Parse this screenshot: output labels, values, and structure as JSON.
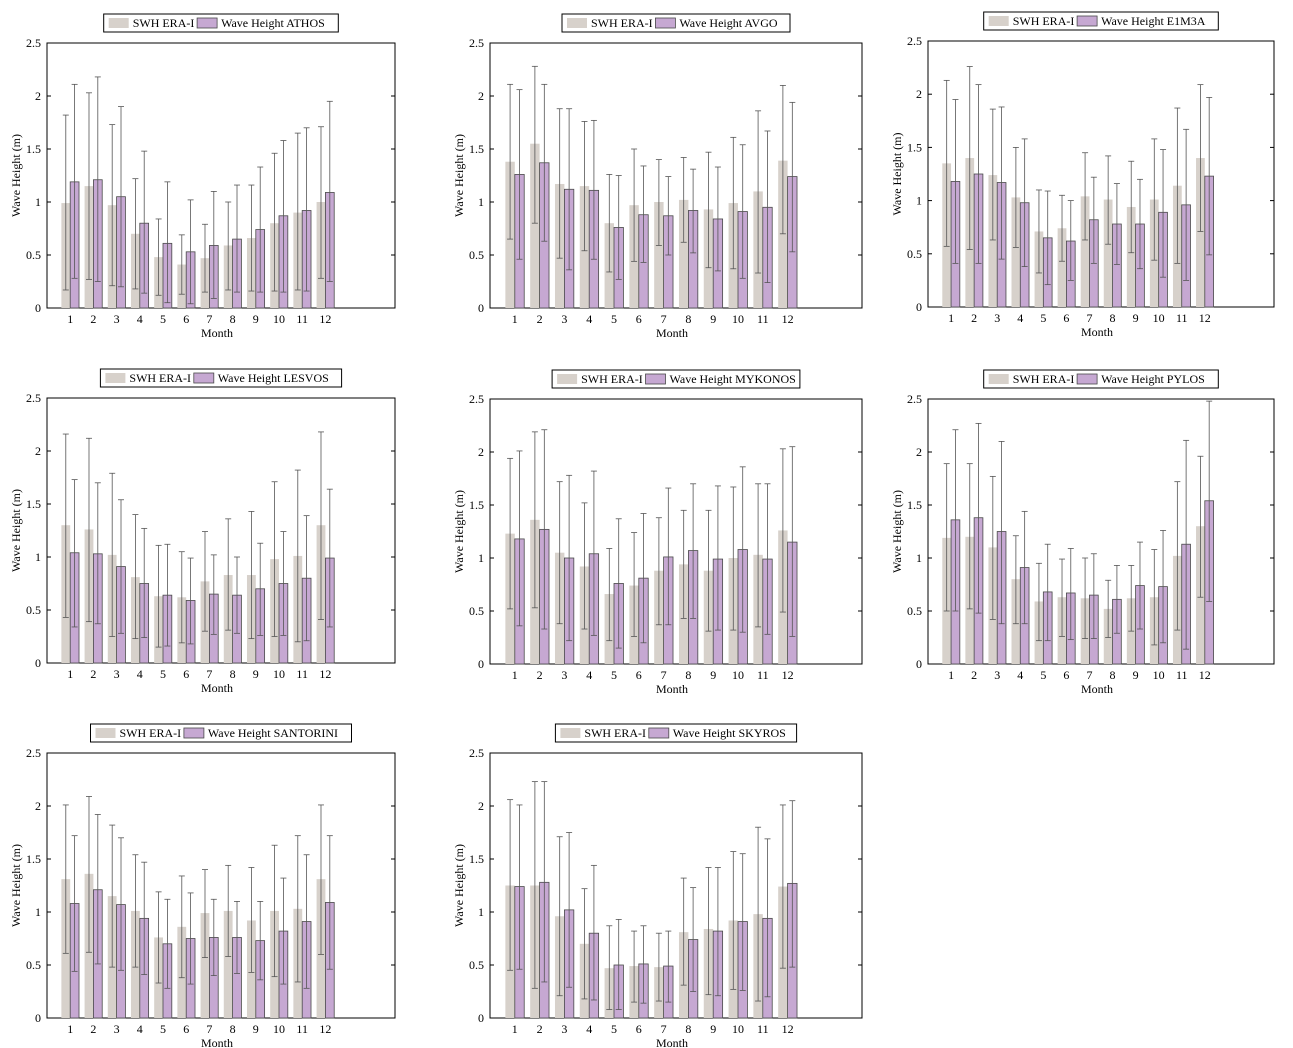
{
  "colors": {
    "era": "#d7d1cb",
    "buoy": "#c6a8d2",
    "bar_edge": "#4a4a4a",
    "axis": "#000000"
  },
  "chart_data": [
    {
      "type": "bar",
      "legend": [
        "SWH ERA-I",
        "Wave Height ATHOS"
      ],
      "xlabel": "Month",
      "ylabel": "Wave Height (m)",
      "categories": [
        "1",
        "2",
        "3",
        "4",
        "5",
        "6",
        "7",
        "8",
        "9",
        "10",
        "11",
        "12"
      ],
      "yticks": [
        "0",
        "0.5",
        "1",
        "1.5",
        "2",
        "2.5"
      ],
      "ylim": [
        0,
        2.5
      ],
      "xlim": [
        0,
        15
      ],
      "series": [
        {
          "name": "SWH ERA-I",
          "values": [
            0.99,
            1.15,
            0.97,
            0.7,
            0.48,
            0.41,
            0.47,
            0.59,
            0.66,
            0.8,
            0.9,
            1.0
          ],
          "err_low": [
            0.17,
            0.27,
            0.21,
            0.18,
            0.12,
            0.13,
            0.15,
            0.17,
            0.16,
            0.16,
            0.17,
            0.28
          ],
          "err_high": [
            1.82,
            2.03,
            1.73,
            1.22,
            0.84,
            0.69,
            0.79,
            1.0,
            1.16,
            1.46,
            1.65,
            1.71
          ]
        },
        {
          "name": "Wave Height ATHOS",
          "values": [
            1.19,
            1.21,
            1.05,
            0.8,
            0.61,
            0.53,
            0.59,
            0.65,
            0.74,
            0.87,
            0.92,
            1.09
          ],
          "err_low": [
            0.28,
            0.25,
            0.2,
            0.14,
            0.05,
            0.04,
            0.09,
            0.15,
            0.15,
            0.15,
            0.16,
            0.25
          ],
          "err_high": [
            2.11,
            2.18,
            1.9,
            1.48,
            1.19,
            1.02,
            1.1,
            1.16,
            1.33,
            1.58,
            1.7,
            1.95
          ]
        }
      ]
    },
    {
      "type": "bar",
      "legend": [
        "SWH ERA-I",
        "Wave Height AVGO"
      ],
      "xlabel": "Month",
      "ylabel": "Wave Height (m)",
      "categories": [
        "1",
        "2",
        "3",
        "4",
        "5",
        "6",
        "7",
        "8",
        "9",
        "10",
        "11",
        "12"
      ],
      "yticks": [
        "0",
        "0.5",
        "1",
        "1.5",
        "2",
        "2.5"
      ],
      "ylim": [
        0,
        2.5
      ],
      "xlim": [
        0,
        15
      ],
      "series": [
        {
          "name": "SWH ERA-I",
          "values": [
            1.38,
            1.55,
            1.17,
            1.15,
            0.8,
            0.97,
            1.0,
            1.02,
            0.93,
            0.99,
            1.1,
            1.39
          ],
          "err_low": [
            0.65,
            0.8,
            0.47,
            0.54,
            0.34,
            0.44,
            0.59,
            0.62,
            0.38,
            0.37,
            0.33,
            0.7
          ],
          "err_high": [
            2.11,
            2.28,
            1.88,
            1.76,
            1.26,
            1.5,
            1.4,
            1.42,
            1.47,
            1.61,
            1.86,
            2.1
          ]
        },
        {
          "name": "Wave Height AVGO",
          "values": [
            1.26,
            1.37,
            1.12,
            1.11,
            0.76,
            0.88,
            0.87,
            0.92,
            0.84,
            0.91,
            0.95,
            1.24
          ],
          "err_low": [
            0.46,
            0.63,
            0.36,
            0.46,
            0.27,
            0.43,
            0.5,
            0.52,
            0.35,
            0.28,
            0.24,
            0.53
          ],
          "err_high": [
            2.06,
            2.11,
            1.88,
            1.77,
            1.25,
            1.34,
            1.24,
            1.31,
            1.33,
            1.54,
            1.67,
            1.94
          ]
        }
      ]
    },
    {
      "type": "bar",
      "legend": [
        "SWH ERA-I",
        "Wave Height E1M3A"
      ],
      "xlabel": "Month",
      "ylabel": "Wave Height (m)",
      "categories": [
        "1",
        "2",
        "3",
        "4",
        "5",
        "6",
        "7",
        "8",
        "9",
        "10",
        "11",
        "12"
      ],
      "yticks": [
        "0",
        "0.5",
        "1",
        "1.5",
        "2",
        "2.5"
      ],
      "ylim": [
        0,
        2.5
      ],
      "xlim": [
        0,
        15
      ],
      "series": [
        {
          "name": "SWH ERA-I",
          "values": [
            1.35,
            1.4,
            1.24,
            1.03,
            0.71,
            0.74,
            1.04,
            1.01,
            0.94,
            1.01,
            1.14,
            1.4
          ],
          "err_low": [
            0.57,
            0.54,
            0.63,
            0.56,
            0.32,
            0.43,
            0.63,
            0.59,
            0.51,
            0.44,
            0.41,
            0.71
          ],
          "err_high": [
            2.13,
            2.26,
            1.86,
            1.5,
            1.1,
            1.05,
            1.45,
            1.42,
            1.37,
            1.58,
            1.87,
            2.09
          ]
        },
        {
          "name": "Wave Height E1M3A",
          "values": [
            1.18,
            1.25,
            1.17,
            0.98,
            0.65,
            0.62,
            0.82,
            0.78,
            0.78,
            0.89,
            0.96,
            1.23
          ],
          "err_low": [
            0.41,
            0.41,
            0.45,
            0.38,
            0.21,
            0.25,
            0.41,
            0.4,
            0.36,
            0.28,
            0.25,
            0.49
          ],
          "err_high": [
            1.95,
            2.09,
            1.88,
            1.58,
            1.09,
            1.0,
            1.22,
            1.16,
            1.2,
            1.48,
            1.67,
            1.97
          ]
        }
      ]
    },
    {
      "type": "bar",
      "legend": [
        "SWH ERA-I",
        "Wave Height LESVOS"
      ],
      "xlabel": "Month",
      "ylabel": "Wave Height (m)",
      "categories": [
        "1",
        "2",
        "3",
        "4",
        "5",
        "6",
        "7",
        "8",
        "9",
        "10",
        "11",
        "12"
      ],
      "yticks": [
        "0",
        "0.5",
        "1",
        "1.5",
        "2",
        "2.5"
      ],
      "ylim": [
        0,
        2.5
      ],
      "xlim": [
        0,
        15
      ],
      "series": [
        {
          "name": "SWH ERA-I",
          "values": [
            1.3,
            1.26,
            1.02,
            0.81,
            0.63,
            0.62,
            0.77,
            0.83,
            0.83,
            0.98,
            1.01,
            1.3
          ],
          "err_low": [
            0.43,
            0.39,
            0.25,
            0.23,
            0.15,
            0.19,
            0.3,
            0.31,
            0.23,
            0.25,
            0.2,
            0.41
          ],
          "err_high": [
            2.16,
            2.12,
            1.79,
            1.4,
            1.11,
            1.05,
            1.24,
            1.36,
            1.43,
            1.71,
            1.82,
            2.18
          ]
        },
        {
          "name": "Wave Height LESVOS",
          "values": [
            1.04,
            1.03,
            0.91,
            0.75,
            0.64,
            0.59,
            0.65,
            0.64,
            0.7,
            0.75,
            0.8,
            0.99
          ],
          "err_low": [
            0.34,
            0.37,
            0.28,
            0.24,
            0.16,
            0.18,
            0.27,
            0.28,
            0.26,
            0.26,
            0.21,
            0.34
          ],
          "err_high": [
            1.73,
            1.7,
            1.54,
            1.27,
            1.12,
            0.99,
            1.02,
            1.0,
            1.13,
            1.24,
            1.39,
            1.64
          ]
        }
      ]
    },
    {
      "type": "bar",
      "legend": [
        "SWH ERA-I",
        "Wave Height MYKONOS"
      ],
      "xlabel": "Month",
      "ylabel": "Wave Height (m)",
      "categories": [
        "1",
        "2",
        "3",
        "4",
        "5",
        "6",
        "7",
        "8",
        "9",
        "10",
        "11",
        "12"
      ],
      "yticks": [
        "0",
        "0.5",
        "1",
        "1.5",
        "2",
        "2.5"
      ],
      "ylim": [
        0,
        2.5
      ],
      "xlim": [
        0,
        15
      ],
      "series": [
        {
          "name": "SWH ERA-I",
          "values": [
            1.23,
            1.36,
            1.05,
            0.92,
            0.66,
            0.74,
            0.88,
            0.94,
            0.88,
            1.0,
            1.03,
            1.26
          ],
          "err_low": [
            0.52,
            0.53,
            0.38,
            0.33,
            0.22,
            0.26,
            0.37,
            0.43,
            0.31,
            0.32,
            0.35,
            0.49
          ],
          "err_high": [
            1.94,
            2.19,
            1.72,
            1.52,
            1.09,
            1.24,
            1.38,
            1.45,
            1.45,
            1.67,
            1.7,
            2.03
          ]
        },
        {
          "name": "Wave Height MYKONOS",
          "values": [
            1.18,
            1.27,
            1.0,
            1.04,
            0.76,
            0.81,
            1.01,
            1.07,
            0.99,
            1.08,
            0.99,
            1.15
          ],
          "err_low": [
            0.36,
            0.33,
            0.22,
            0.27,
            0.15,
            0.2,
            0.37,
            0.43,
            0.32,
            0.3,
            0.28,
            0.26
          ],
          "err_high": [
            2.01,
            2.21,
            1.78,
            1.82,
            1.37,
            1.42,
            1.66,
            1.7,
            1.68,
            1.86,
            1.7,
            2.05
          ]
        }
      ]
    },
    {
      "type": "bar",
      "legend": [
        "SWH ERA-I",
        "Wave Height PYLOS"
      ],
      "xlabel": "Month",
      "ylabel": "Wave Height (m)",
      "categories": [
        "1",
        "2",
        "3",
        "4",
        "5",
        "6",
        "7",
        "8",
        "9",
        "10",
        "11",
        "12"
      ],
      "yticks": [
        "0",
        "0.5",
        "1",
        "1.5",
        "2",
        "2.5"
      ],
      "ylim": [
        0,
        2.5
      ],
      "xlim": [
        0,
        15
      ],
      "series": [
        {
          "name": "SWH ERA-I",
          "values": [
            1.19,
            1.2,
            1.1,
            0.8,
            0.59,
            0.63,
            0.62,
            0.52,
            0.62,
            0.63,
            1.02,
            1.3
          ],
          "err_low": [
            0.5,
            0.52,
            0.42,
            0.38,
            0.22,
            0.26,
            0.24,
            0.25,
            0.31,
            0.18,
            0.32,
            0.63
          ],
          "err_high": [
            1.89,
            1.89,
            1.77,
            1.21,
            0.95,
            0.99,
            1.0,
            0.79,
            0.93,
            1.08,
            1.72,
            1.96
          ]
        },
        {
          "name": "Wave Height PYLOS",
          "values": [
            1.36,
            1.38,
            1.25,
            0.91,
            0.68,
            0.67,
            0.65,
            0.61,
            0.74,
            0.73,
            1.13,
            1.54
          ],
          "err_low": [
            0.5,
            0.48,
            0.38,
            0.38,
            0.22,
            0.23,
            0.24,
            0.29,
            0.33,
            0.2,
            0.14,
            0.59
          ],
          "err_high": [
            2.21,
            2.27,
            2.1,
            1.44,
            1.13,
            1.09,
            1.04,
            0.93,
            1.15,
            1.26,
            2.11,
            2.48
          ]
        }
      ]
    },
    {
      "type": "bar",
      "legend": [
        "SWH ERA-I",
        "Wave Height SANTORINI"
      ],
      "xlabel": "Month",
      "ylabel": "Wave Height (m)",
      "categories": [
        "1",
        "2",
        "3",
        "4",
        "5",
        "6",
        "7",
        "8",
        "9",
        "10",
        "11",
        "12"
      ],
      "yticks": [
        "0",
        "0.5",
        "1",
        "1.5",
        "2",
        "2.5"
      ],
      "ylim": [
        0,
        2.5
      ],
      "xlim": [
        0,
        15
      ],
      "series": [
        {
          "name": "SWH ERA-I",
          "values": [
            1.31,
            1.36,
            1.15,
            1.01,
            0.76,
            0.86,
            0.99,
            1.01,
            0.92,
            1.01,
            1.03,
            1.31
          ],
          "err_low": [
            0.61,
            0.62,
            0.48,
            0.48,
            0.33,
            0.38,
            0.57,
            0.58,
            0.43,
            0.39,
            0.34,
            0.6
          ],
          "err_high": [
            2.01,
            2.09,
            1.82,
            1.54,
            1.19,
            1.34,
            1.4,
            1.44,
            1.42,
            1.63,
            1.72,
            2.01
          ]
        },
        {
          "name": "Wave Height SANTORINI",
          "values": [
            1.08,
            1.21,
            1.07,
            0.94,
            0.7,
            0.75,
            0.76,
            0.76,
            0.73,
            0.82,
            0.91,
            1.09
          ],
          "err_low": [
            0.44,
            0.51,
            0.45,
            0.41,
            0.28,
            0.32,
            0.4,
            0.42,
            0.36,
            0.32,
            0.28,
            0.46
          ],
          "err_high": [
            1.72,
            1.92,
            1.7,
            1.47,
            1.12,
            1.18,
            1.12,
            1.1,
            1.1,
            1.32,
            1.54,
            1.72
          ]
        }
      ]
    },
    {
      "type": "bar",
      "legend": [
        "SWH ERA-I",
        "Wave Height SKYROS"
      ],
      "xlabel": "Month",
      "ylabel": "Wave Height (m)",
      "categories": [
        "1",
        "2",
        "3",
        "4",
        "5",
        "6",
        "7",
        "8",
        "9",
        "10",
        "11",
        "12"
      ],
      "yticks": [
        "0",
        "0.5",
        "1",
        "1.5",
        "2",
        "2.5"
      ],
      "ylim": [
        0,
        2.5
      ],
      "xlim": [
        0,
        15
      ],
      "series": [
        {
          "name": "SWH ERA-I",
          "values": [
            1.25,
            1.25,
            0.96,
            0.7,
            0.47,
            0.49,
            0.48,
            0.81,
            0.84,
            0.92,
            0.98,
            1.24
          ],
          "err_low": [
            0.45,
            0.28,
            0.21,
            0.18,
            0.08,
            0.15,
            0.16,
            0.31,
            0.22,
            0.27,
            0.16,
            0.47
          ],
          "err_high": [
            2.06,
            2.23,
            1.71,
            1.22,
            0.87,
            0.82,
            0.8,
            1.32,
            1.42,
            1.57,
            1.8,
            2.01
          ]
        },
        {
          "name": "Wave Height SKYROS",
          "values": [
            1.24,
            1.28,
            1.02,
            0.8,
            0.5,
            0.51,
            0.49,
            0.74,
            0.82,
            0.91,
            0.94,
            1.27
          ],
          "err_low": [
            0.46,
            0.34,
            0.29,
            0.17,
            0.08,
            0.14,
            0.15,
            0.25,
            0.21,
            0.26,
            0.2,
            0.48
          ],
          "err_high": [
            2.01,
            2.23,
            1.75,
            1.44,
            0.93,
            0.87,
            0.82,
            1.23,
            1.42,
            1.55,
            1.69,
            2.05
          ]
        }
      ]
    }
  ]
}
